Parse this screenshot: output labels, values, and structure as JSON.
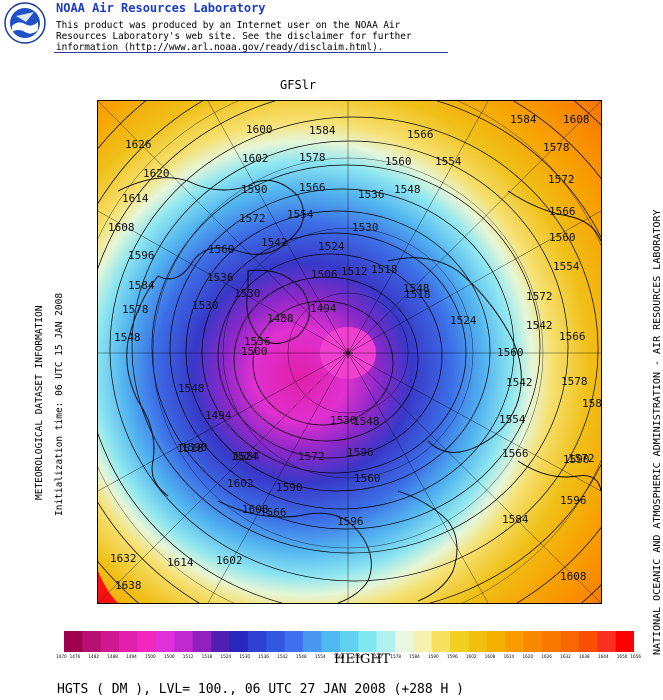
{
  "header": {
    "org": "NOAA Air Resources Laboratory",
    "logo_name": "noaa-logo",
    "disclaimer_lines": [
      "This product was produced by an Internet user on the NOAA Air",
      "Resources Laboratory's web site.  See the disclaimer for further",
      "information (http://www.arl.noaa.gov/ready/disclaim.html)."
    ]
  },
  "model_title": "GFSlr",
  "side_left": {
    "line1": "METEOROLOGICAL DATASET INFORMATION",
    "line2": "Initialization time: 06 UTC 15 JAN 2008"
  },
  "side_right": "NATIONAL OCEANIC AND ATMOSPHERIC ADMINISTRATION - AIR RESOURCES LABORATORY",
  "variable_title": "HEIGHT",
  "footer": "HGTS ( DM ),  LVL= 100., 06 UTC 27 JAN 2008 (+288 H )",
  "colors": {
    "scale": [
      "#a00050",
      "#b81070",
      "#d01890",
      "#e020a8",
      "#f028c0",
      "#e030d8",
      "#c028d0",
      "#9020c0",
      "#5020b0",
      "#2828c0",
      "#3040d0",
      "#3058e0",
      "#4070f0",
      "#4898f0",
      "#50b8f0",
      "#60d0f0",
      "#80e8f0",
      "#b0f0f0",
      "#e8f8e0",
      "#f8f0b0",
      "#f8e060",
      "#f0d020",
      "#f0c010",
      "#f8b000",
      "#f89c00",
      "#f88800",
      "#f87800",
      "#f86800",
      "#f85000",
      "#f83020",
      "#ff0000"
    ],
    "scale_labels": [
      "1470",
      "1476",
      "1482",
      "1488",
      "1494",
      "1500",
      "1506",
      "1512",
      "1518",
      "1524",
      "1530",
      "1536",
      "1542",
      "1548",
      "1554",
      "1560",
      "1566",
      "1572",
      "1578",
      "1584",
      "1590",
      "1596",
      "1602",
      "1608",
      "1614",
      "1620",
      "1626",
      "1632",
      "1638",
      "1644",
      "1650",
      "1656"
    ]
  },
  "contour_labels": [
    {
      "text": "1600"
    },
    {
      "text": "1584"
    },
    {
      "text": "1566"
    },
    {
      "text": "1584"
    },
    {
      "text": "1608"
    },
    {
      "text": "1626"
    },
    {
      "text": "1602"
    },
    {
      "text": "1578"
    },
    {
      "text": "1560"
    },
    {
      "text": "1554"
    },
    {
      "text": "1578"
    },
    {
      "text": "1620"
    },
    {
      "text": "1590"
    },
    {
      "text": "1566"
    },
    {
      "text": "1548"
    },
    {
      "text": "1572"
    },
    {
      "text": "1614"
    },
    {
      "text": "1572"
    },
    {
      "text": "1554"
    },
    {
      "text": "1536"
    },
    {
      "text": "1566"
    },
    {
      "text": "1608"
    },
    {
      "text": "1542"
    },
    {
      "text": "1524"
    },
    {
      "text": "1530"
    },
    {
      "text": "1560"
    },
    {
      "text": "1596"
    },
    {
      "text": "1560"
    },
    {
      "text": "1506"
    },
    {
      "text": "1518"
    },
    {
      "text": "1554"
    },
    {
      "text": "1584"
    },
    {
      "text": "1536"
    },
    {
      "text": "1512"
    },
    {
      "text": "1548"
    },
    {
      "text": "1572"
    },
    {
      "text": "1530"
    },
    {
      "text": "1494"
    },
    {
      "text": "1518"
    },
    {
      "text": "1524"
    },
    {
      "text": "1542"
    },
    {
      "text": "1578"
    },
    {
      "text": "1488"
    },
    {
      "text": "1530"
    },
    {
      "text": "1566"
    },
    {
      "text": "1560"
    },
    {
      "text": "1548"
    },
    {
      "text": "1536"
    },
    {
      "text": "1578"
    },
    {
      "text": "1542"
    },
    {
      "text": "1494"
    },
    {
      "text": "1500"
    },
    {
      "text": "1548"
    },
    {
      "text": "1554"
    },
    {
      "text": "1584"
    },
    {
      "text": "1590"
    },
    {
      "text": "1590"
    },
    {
      "text": "1530"
    },
    {
      "text": "1518"
    },
    {
      "text": "1524"
    },
    {
      "text": "1566"
    },
    {
      "text": "1572"
    },
    {
      "text": "1596"
    },
    {
      "text": "1602"
    },
    {
      "text": "1548"
    },
    {
      "text": "1572"
    },
    {
      "text": "1584"
    },
    {
      "text": "1566"
    },
    {
      "text": "1608"
    },
    {
      "text": "1596"
    },
    {
      "text": "1560"
    },
    {
      "text": "1590"
    },
    {
      "text": "1596"
    },
    {
      "text": "1632"
    },
    {
      "text": "1614"
    },
    {
      "text": "1602"
    },
    {
      "text": "1638"
    },
    {
      "text": "1620"
    },
    {
      "text": "1608"
    },
    {
      "text": "1584"
    }
  ]
}
